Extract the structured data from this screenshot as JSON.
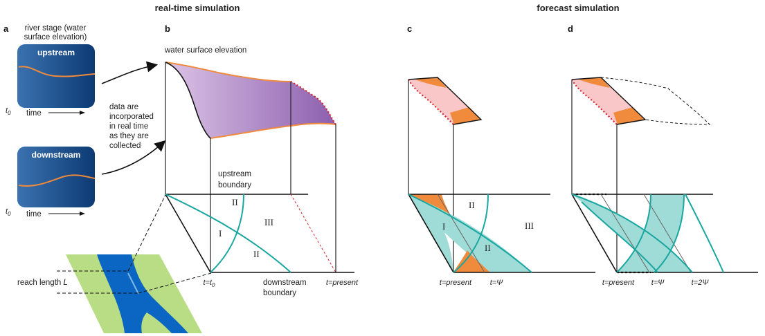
{
  "sections": {
    "realtime_title": "real-time simulation",
    "forecast_title": "forecast simulation"
  },
  "panels": {
    "a": "a",
    "b": "b",
    "c": "c",
    "d": "d"
  },
  "panel_a": {
    "title_line1": "river stage (water",
    "title_line2": "surface elevation)",
    "upstream": "upstream",
    "downstream": "downstream",
    "t0": "t",
    "t0_sub": "0",
    "time": "time"
  },
  "notes": {
    "data_line1": "data are",
    "data_line2": "incorporated",
    "data_line3": "in real time",
    "data_line4": "as they are",
    "data_line5": "collected",
    "reach_length": "reach length",
    "reach_L": "L"
  },
  "panel_b": {
    "wse": "water surface elevation",
    "upstream_boundary_1": "upstream",
    "upstream_boundary_2": "boundary",
    "downstream_boundary_1": "downstream",
    "downstream_boundary_2": "boundary",
    "t_eq_t0": "t=t",
    "t_eq_t0_sub": "0",
    "t_present": "t=present",
    "region_I": "I",
    "region_II_top": "II",
    "region_II_bottom": "II",
    "region_III": "III"
  },
  "panel_c": {
    "t_present": "t=present",
    "t_psi": "t=Ψ",
    "region_I": "I",
    "region_II_top": "II",
    "region_II_bottom": "II",
    "region_III": "III"
  },
  "panel_d": {
    "t_present": "t=present",
    "t_psi": "t=Ψ",
    "t_2psi": "t=2Ψ"
  },
  "colors": {
    "box_dark": "#0f3f7a",
    "box_light": "#2e6aa8",
    "orange": "#f08a3c",
    "purple_light": "#d8bfe3",
    "purple_dark": "#8e62b0",
    "pink": "#f9c7c7",
    "teal": "#1aa6a0",
    "teal_fill": "#9fdcd7",
    "river_blue": "#0a66c2",
    "bank_green": "#b9dd84",
    "red_dotted": "#d9232e"
  }
}
